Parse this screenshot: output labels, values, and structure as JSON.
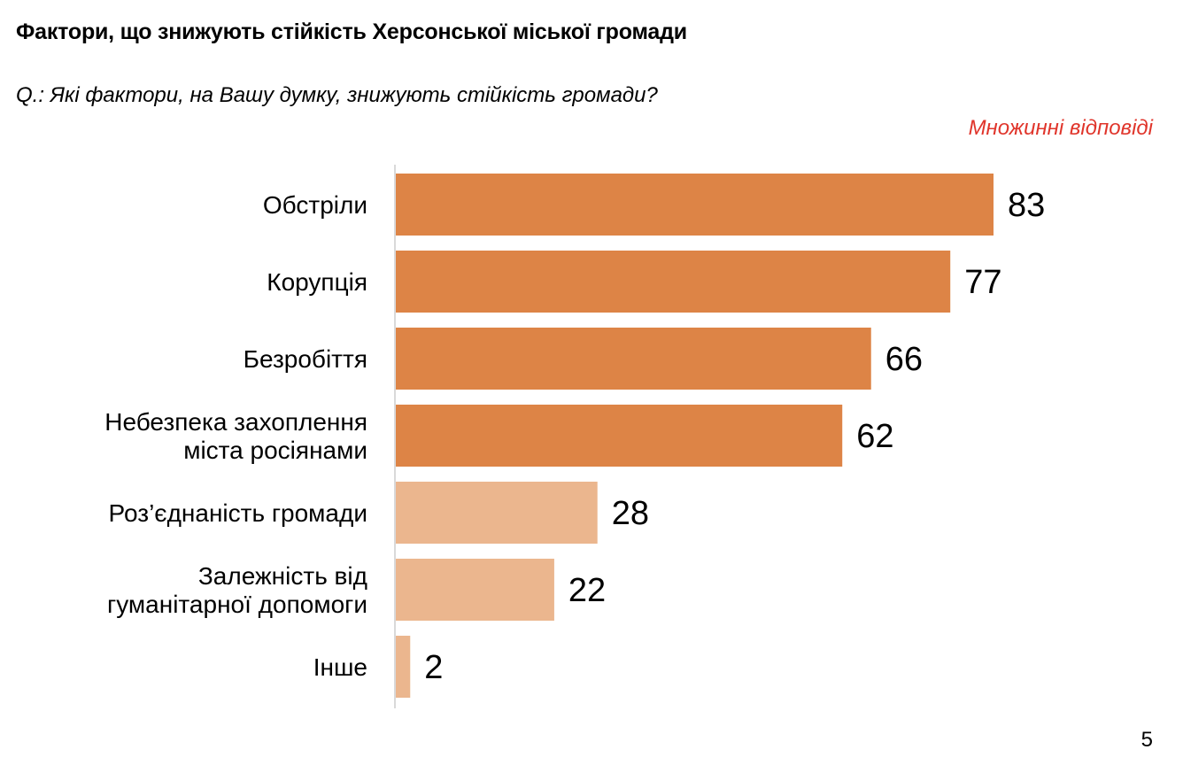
{
  "header": {
    "title": "Фактори, що знижують стійкість Херсонської міської громади",
    "question": "Q.: Які фактори, на Вашу думку, знижують стійкість громади?",
    "note": "Множинні відповіді"
  },
  "footer": {
    "page_number": "5"
  },
  "colors": {
    "primary_bar": "#dd8446",
    "secondary_bar": "#ebb68e",
    "axis": "#d9d9d9",
    "note": "#e0352b"
  },
  "chart_data": {
    "type": "bar",
    "orientation": "horizontal",
    "title": "Фактори, що знижують стійкість Херсонської міської громади",
    "categories": [
      [
        "Обстріли"
      ],
      [
        "Корупція"
      ],
      [
        "Безробіття"
      ],
      [
        "Небезпека захоплення",
        "міста росіянами"
      ],
      [
        "Роз’єднаність громади"
      ],
      [
        "Залежність від",
        "гуманітарної допомоги"
      ],
      [
        "Інше"
      ]
    ],
    "values": [
      83,
      77,
      66,
      62,
      28,
      22,
      2
    ],
    "value_labels": [
      "83",
      "77",
      "66",
      "62",
      "28",
      "22",
      "2"
    ],
    "tones": [
      "primary",
      "primary",
      "primary",
      "primary",
      "secondary",
      "secondary",
      "secondary"
    ],
    "xlim": [
      0,
      100
    ],
    "grid": false,
    "legend": "none"
  }
}
